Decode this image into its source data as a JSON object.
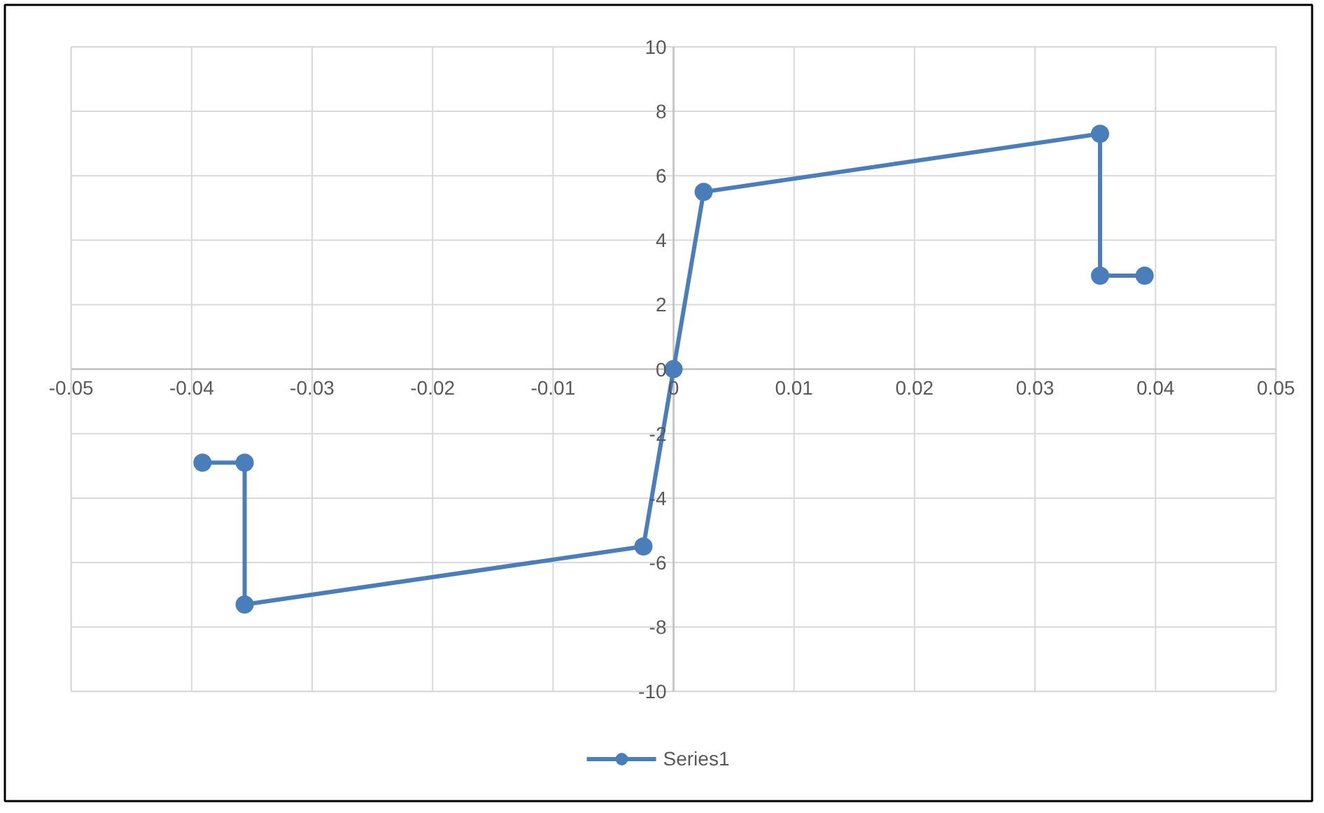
{
  "chart_data": {
    "type": "line",
    "x": [
      -0.0391,
      -0.0356,
      -0.0356,
      -0.0025,
      0,
      0.0025,
      0.0354,
      0.0354,
      0.0391
    ],
    "series": [
      {
        "name": "Series1",
        "color": "#4a7ebb",
        "values": [
          -2.9,
          -2.9,
          -7.3,
          -5.5,
          0,
          5.5,
          7.3,
          2.9,
          2.9
        ]
      }
    ],
    "xlim": [
      -0.05,
      0.05
    ],
    "xticks": [
      -0.05,
      -0.04,
      -0.03,
      -0.02,
      -0.01,
      0,
      0.01,
      0.02,
      0.03,
      0.04,
      0.05
    ],
    "ylim": [
      -10,
      10
    ],
    "yticks": [
      -10,
      -8,
      -6,
      -4,
      -2,
      0,
      2,
      4,
      6,
      8,
      10
    ],
    "grid": true,
    "legend": "bottom",
    "marker": "circle",
    "line_style": "solid"
  }
}
